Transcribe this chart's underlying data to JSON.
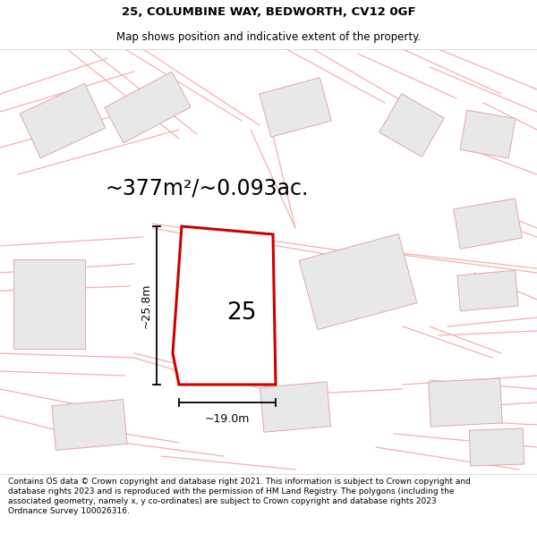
{
  "title_line1": "25, COLUMBINE WAY, BEDWORTH, CV12 0GF",
  "title_line2": "Map shows position and indicative extent of the property.",
  "area_text": "~377m²/~0.093ac.",
  "label_number": "25",
  "dim_vertical": "~25.8m",
  "dim_horizontal": "~19.0m",
  "footer_text": "Contains OS data © Crown copyright and database right 2021. This information is subject to Crown copyright and database rights 2023 and is reproduced with the permission of HM Land Registry. The polygons (including the associated geometry, namely x, y co-ordinates) are subject to Crown copyright and database rights 2023 Ordnance Survey 100026316.",
  "title_fontsize": 9.5,
  "subtitle_fontsize": 8.5,
  "area_fontsize": 17,
  "label_fontsize": 19,
  "dim_fontsize": 9,
  "footer_fontsize": 6.5,
  "road_color": "#f5b0b0",
  "nearby_fill": "#e8e8e8",
  "nearby_edge": "#ddaaaa",
  "plot_edge": "#cc0000",
  "road_lw": 0.9
}
